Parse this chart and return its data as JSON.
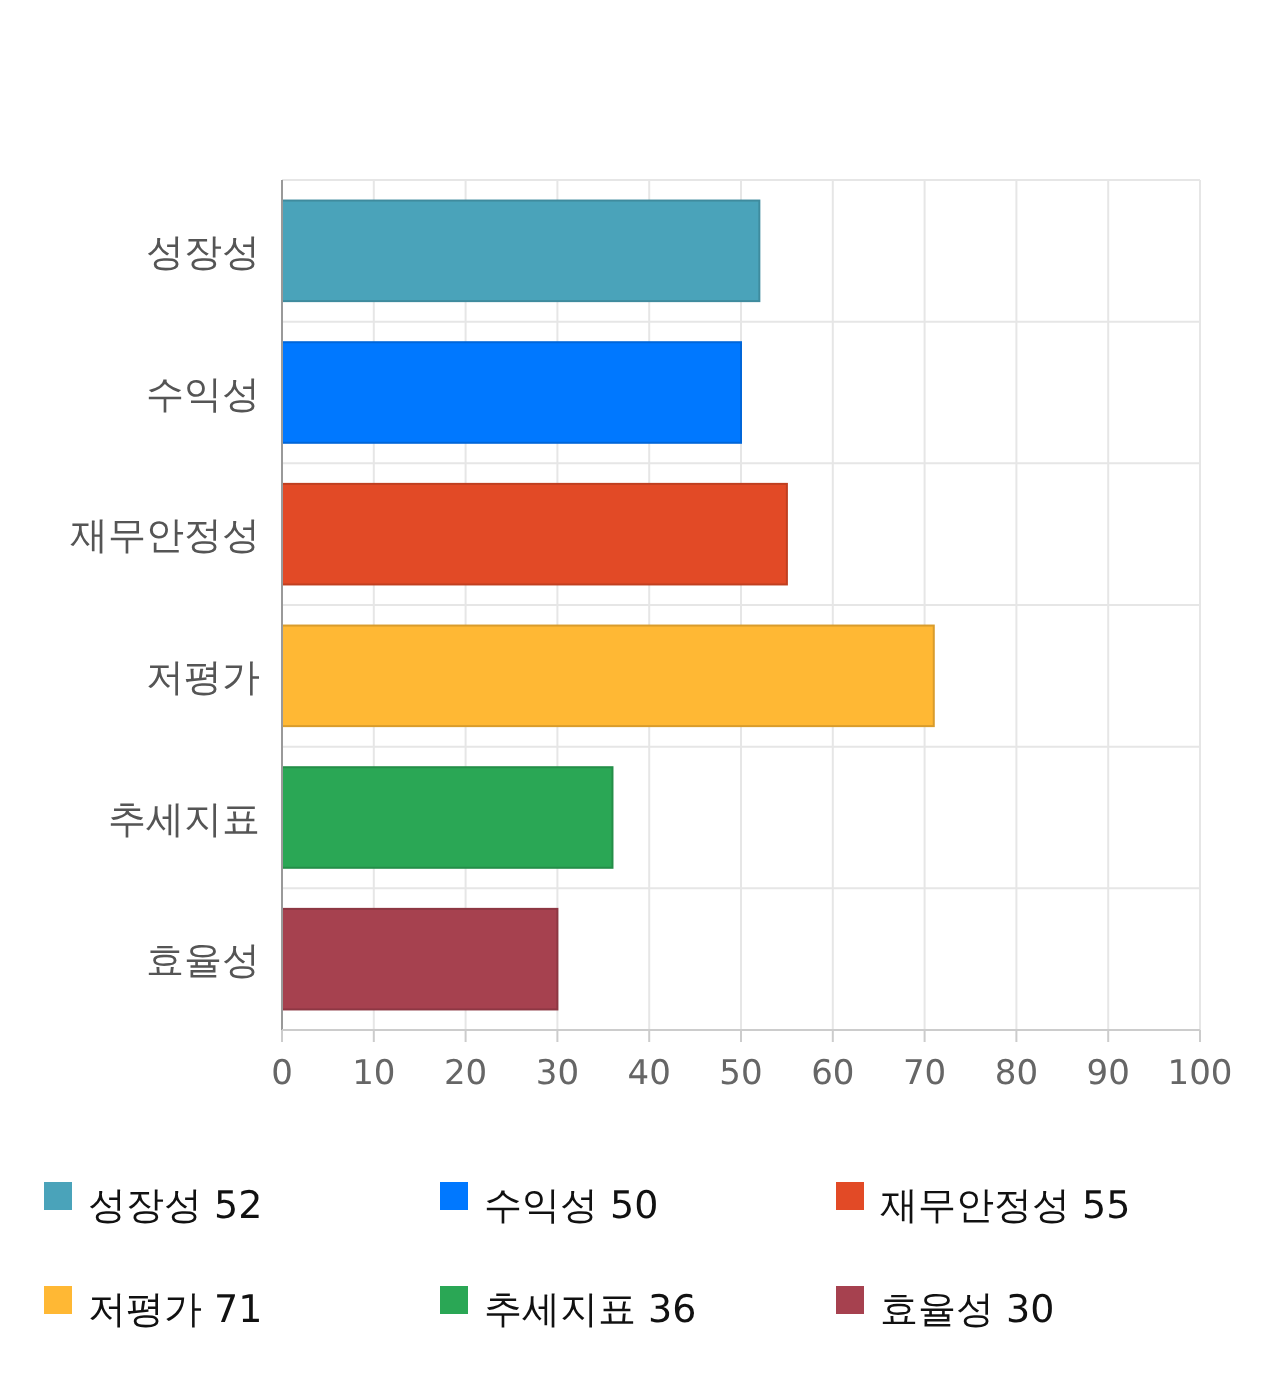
{
  "chart_data": {
    "type": "bar",
    "orientation": "horizontal",
    "categories": [
      "성장성",
      "수익성",
      "재무안정성",
      "저평가",
      "추세지표",
      "효율성"
    ],
    "series": [
      {
        "name": "성장성 52",
        "color": "#4aa3ba",
        "values": [
          52,
          null,
          null,
          null,
          null,
          null
        ]
      },
      {
        "name": "수익성 50",
        "color": "#0078ff",
        "values": [
          null,
          50,
          null,
          null,
          null,
          null
        ]
      },
      {
        "name": "재무안정성 55",
        "color": "#e24a26",
        "values": [
          null,
          null,
          55,
          null,
          null,
          null
        ]
      },
      {
        "name": "저평가 71",
        "color": "#ffb834",
        "values": [
          null,
          null,
          null,
          71,
          null,
          null
        ]
      },
      {
        "name": "추세지표 36",
        "color": "#2aa755",
        "values": [
          null,
          null,
          null,
          null,
          36,
          null
        ]
      },
      {
        "name": "효율성 30",
        "color": "#a6414f",
        "values": [
          null,
          null,
          null,
          null,
          null,
          30
        ]
      }
    ],
    "xlim": [
      0,
      100
    ],
    "xticks": [
      0,
      10,
      20,
      30,
      40,
      50,
      60,
      70,
      80,
      90,
      100
    ],
    "grid": true,
    "legend": "bottom"
  }
}
